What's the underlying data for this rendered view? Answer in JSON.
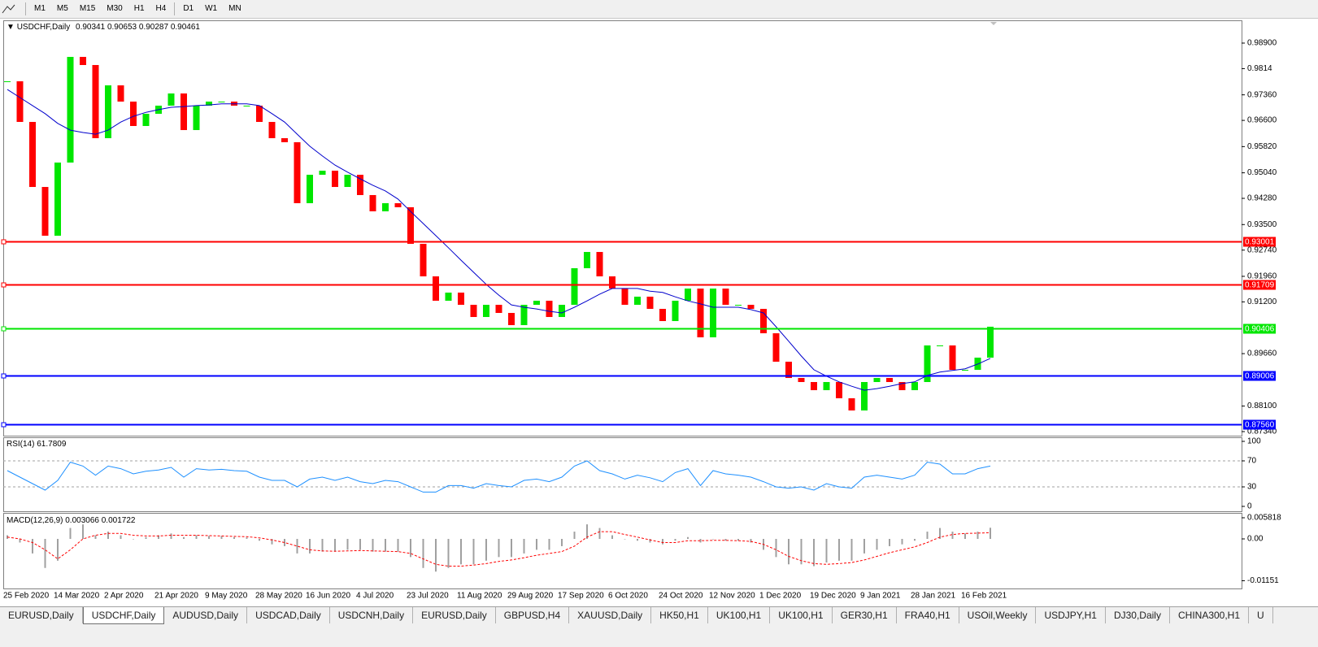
{
  "toolbar": {
    "timeframes": [
      "M1",
      "M5",
      "M15",
      "M30",
      "H1",
      "H4",
      "D1",
      "W1",
      "MN"
    ]
  },
  "chart_data": [
    {
      "type": "candlestick",
      "title": "USDCHF,Daily",
      "last_ohlc": [
        0.90341,
        0.90653,
        0.90287,
        0.90461
      ],
      "categories": [
        "25 Feb 2020",
        null,
        null,
        null,
        "14 Mar 2020",
        null,
        null,
        null,
        "2 Apr 2020",
        null,
        null,
        null,
        "21 Apr 2020",
        null,
        null,
        null,
        "9 May 2020",
        null,
        null,
        null,
        "28 May 2020",
        null,
        null,
        null,
        "16 Jun 2020",
        null,
        null,
        null,
        "4 Jul 2020",
        null,
        null,
        null,
        "23 Jul 2020",
        null,
        null,
        null,
        "11 Aug 2020",
        null,
        null,
        null,
        "29 Aug 2020",
        null,
        null,
        null,
        "17 Sep 2020",
        null,
        null,
        null,
        "6 Oct 2020",
        null,
        null,
        null,
        "24 Oct 2020",
        null,
        null,
        null,
        "12 Nov 2020",
        null,
        null,
        null,
        "1 Dec 2020",
        null,
        null,
        null,
        "19 Dec 2020",
        null,
        null,
        null,
        "9 Jan 2021",
        null,
        null,
        null,
        "28 Jan 2021",
        null,
        null,
        null,
        "16 Feb 2021",
        null,
        null
      ],
      "values": [
        0.97763,
        0.96554,
        0.94619,
        0.93168,
        0.95345,
        0.98489,
        0.98247,
        0.9607,
        0.97642,
        0.97159,
        0.96433,
        0.96796,
        0.97038,
        0.97401,
        0.96312,
        0.97038,
        0.97159,
        0.97159,
        0.97038,
        0.97038,
        0.96554,
        0.9607,
        0.9595,
        0.94136,
        0.94982,
        0.95103,
        0.94619,
        0.94982,
        0.94378,
        0.93894,
        0.94136,
        0.94015,
        0.92927,
        0.91959,
        0.91234,
        0.91476,
        0.91113,
        0.9075,
        0.91113,
        0.90871,
        0.90508,
        0.91113,
        0.91234,
        0.9075,
        0.91113,
        0.92201,
        0.92685,
        0.91959,
        0.91596,
        0.91113,
        0.91355,
        0.90992,
        0.90629,
        0.91234,
        0.91596,
        0.90145,
        0.91596,
        0.91113,
        0.91113,
        0.90992,
        0.90266,
        0.8942,
        0.88936,
        0.88815,
        0.88573,
        0.88815,
        0.88332,
        0.87969,
        0.88815,
        0.88936,
        0.88815,
        0.88573,
        0.88815,
        0.89904,
        0.89904,
        0.89178,
        0.89178,
        0.89541,
        0.90461
      ],
      "up_color": "#00e600",
      "down_color": "#ff0000",
      "series": [
        {
          "color": "#0000cc",
          "values": [
            0.9752,
            0.9728,
            0.9704,
            0.968,
            0.9651,
            0.9631,
            0.9624,
            0.9619,
            0.9631,
            0.9655,
            0.9672,
            0.9684,
            0.9692,
            0.9699,
            0.9701,
            0.9704,
            0.9706,
            0.9709,
            0.9709,
            0.9709,
            0.9704,
            0.968,
            0.9655,
            0.9619,
            0.9583,
            0.9554,
            0.9527,
            0.9506,
            0.9486,
            0.9467,
            0.945,
            0.9426,
            0.9389,
            0.9353,
            0.9317,
            0.9281,
            0.9244,
            0.9208,
            0.9172,
            0.914,
            0.9111,
            0.9104,
            0.9099,
            0.9092,
            0.9087,
            0.9104,
            0.9123,
            0.9143,
            0.916,
            0.916,
            0.916,
            0.9152,
            0.9148,
            0.9135,
            0.9123,
            0.9114,
            0.9104,
            0.9104,
            0.9104,
            0.9097,
            0.9087,
            0.9046,
            0.9003,
            0.8959,
            0.8918,
            0.8899,
            0.8882,
            0.8869,
            0.8857,
            0.8862,
            0.8869,
            0.8877,
            0.8882,
            0.8901,
            0.8911,
            0.8916,
            0.8921,
            0.8935,
            0.8952
          ]
        }
      ],
      "levels": [
        {
          "value": 0.93001,
          "color": "#ff0000"
        },
        {
          "value": 0.91709,
          "color": "#ff0000"
        },
        {
          "value": 0.90406,
          "color": "#00e600"
        },
        {
          "value": 0.89006,
          "color": "#0000ff"
        },
        {
          "value": 0.8756,
          "label": "0.87560",
          "color": "#0000ff"
        }
      ],
      "ylim": [
        0.87195,
        0.99577
      ],
      "yticks": [
        {
          "value": 0.989,
          "label": "0.98900"
        },
        0.9814,
        {
          "value": 0.9736,
          "label": "0.97360"
        },
        {
          "value": 0.966,
          "label": "0.96600"
        },
        {
          "value": 0.9582,
          "label": "0.95820"
        },
        {
          "value": 0.9504,
          "label": "0.95040"
        },
        {
          "value": 0.9428,
          "label": "0.94280"
        },
        {
          "value": 0.935,
          "label": "0.93500"
        },
        {
          "value": 0.9274,
          "label": "0.92740"
        },
        {
          "value": 0.9196,
          "label": "0.91960"
        },
        {
          "value": 0.912,
          "label": "0.91200"
        },
        {
          "value": 0.8966,
          "label": "0.89660"
        },
        {
          "value": 0.881,
          "label": "0.88100"
        },
        {
          "value": 0.8734,
          "label": "0.87340"
        }
      ]
    },
    {
      "type": "line",
      "title": "RSI(14)",
      "last_value": 61.7809,
      "series": [
        {
          "color": "#1e90ff",
          "values": [
            55,
            45,
            35,
            25,
            40,
            68,
            62,
            48,
            62,
            58,
            50,
            54,
            56,
            60,
            45,
            58,
            56,
            57,
            55,
            54,
            45,
            40,
            40,
            30,
            42,
            45,
            40,
            45,
            38,
            35,
            40,
            38,
            30,
            22,
            22,
            32,
            32,
            28,
            35,
            32,
            30,
            40,
            42,
            38,
            45,
            62,
            70,
            55,
            50,
            42,
            48,
            44,
            38,
            52,
            58,
            32,
            55,
            50,
            48,
            45,
            38,
            30,
            28,
            30,
            25,
            35,
            30,
            28,
            45,
            48,
            45,
            42,
            48,
            68,
            65,
            50,
            50,
            58,
            62
          ]
        }
      ],
      "dashed_levels": [
        70,
        30
      ],
      "ylim": [
        -8.75,
        106.25
      ],
      "yticks": [
        100,
        70,
        30,
        0
      ]
    },
    {
      "type": "macd",
      "title": "MACD(12,26,9)",
      "last_values": [
        0.003066,
        0.001722
      ],
      "histogram": [
        0.001,
        -0.001,
        -0.004,
        -0.008,
        -0.006,
        0.003,
        0.004,
        0.001,
        0.002,
        0.001,
        0.0,
        0.0005,
        0.001,
        0.0015,
        0.0005,
        0.001,
        0.0008,
        0.0008,
        0.0005,
        0.0004,
        -0.0005,
        -0.0015,
        -0.002,
        -0.004,
        -0.004,
        -0.0035,
        -0.0035,
        -0.003,
        -0.003,
        -0.0035,
        -0.0035,
        -0.0035,
        -0.005,
        -0.008,
        -0.009,
        -0.008,
        -0.007,
        -0.007,
        -0.006,
        -0.005,
        -0.005,
        -0.004,
        -0.003,
        -0.003,
        -0.002,
        0.002,
        0.004,
        0.003,
        0.001,
        0.0,
        -0.0005,
        -0.001,
        -0.0015,
        -0.0005,
        0.0005,
        -0.001,
        0.0,
        -0.0005,
        -0.0005,
        -0.001,
        -0.003,
        -0.005,
        -0.007,
        -0.007,
        -0.0075,
        -0.0065,
        -0.006,
        -0.006,
        -0.004,
        -0.003,
        -0.002,
        -0.0015,
        -0.0005,
        0.002,
        0.003,
        0.002,
        0.0015,
        0.002,
        0.003066
      ],
      "histogram_color": "#a0a0a0",
      "signal": [
        0.0005,
        0.0,
        -0.001,
        -0.003,
        -0.0055,
        -0.003,
        0.0,
        0.001,
        0.0015,
        0.0015,
        0.001,
        0.0008,
        0.0008,
        0.001,
        0.001,
        0.001,
        0.0009,
        0.0008,
        0.0007,
        0.0006,
        0.0003,
        -0.0003,
        -0.001,
        -0.002,
        -0.003,
        -0.0033,
        -0.0034,
        -0.0033,
        -0.0032,
        -0.0033,
        -0.0034,
        -0.0035,
        -0.004,
        -0.0055,
        -0.007,
        -0.0075,
        -0.0075,
        -0.0072,
        -0.0068,
        -0.0062,
        -0.0058,
        -0.0052,
        -0.0045,
        -0.004,
        -0.0035,
        -0.002,
        0.0005,
        0.002,
        0.002,
        0.0012,
        0.0005,
        -0.0003,
        -0.001,
        -0.001,
        -0.0005,
        -0.0005,
        -0.0004,
        -0.0004,
        -0.0005,
        -0.0007,
        -0.0015,
        -0.003,
        -0.0048,
        -0.006,
        -0.0068,
        -0.007,
        -0.0068,
        -0.0065,
        -0.0058,
        -0.0048,
        -0.0038,
        -0.003,
        -0.0022,
        -0.001,
        0.0005,
        0.0012,
        0.0015,
        0.0016,
        0.001722
      ],
      "signal_color": "#ff0000",
      "ylim": [
        -0.01387,
        0.006937
      ],
      "yticks": [
        0.005818,
        {
          "value": 0,
          "label": "0.00"
        },
        {
          "value": -0.011514,
          "label": "-0.01151"
        }
      ]
    }
  ],
  "tabs": {
    "items": [
      "EURUSD,Daily",
      "USDCHF,Daily",
      "AUDUSD,Daily",
      "USDCAD,Daily",
      "USDCNH,Daily",
      "EURUSD,Daily",
      "GBPUSD,H4",
      "XAUUSD,Daily",
      "HK50,H1",
      "UK100,H1",
      "UK100,H1",
      "GER30,H1",
      "FRA40,H1",
      "USOil,Weekly",
      "USDJPY,H1",
      "DJ30,Daily",
      "CHINA300,H1",
      "U"
    ],
    "active": 1
  }
}
